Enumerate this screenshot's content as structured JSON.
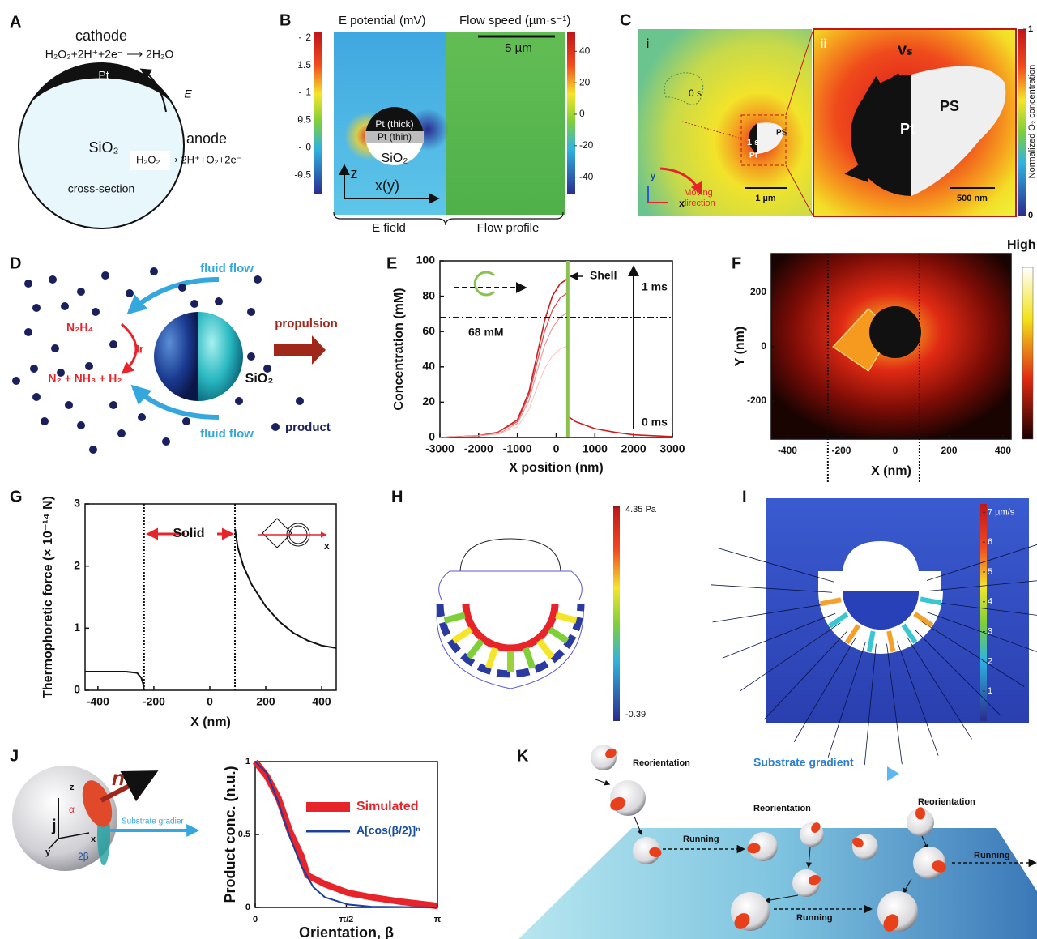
{
  "panels": {
    "A": {
      "label": "A",
      "cathode": "cathode",
      "cathode_reaction": "H₂O₂+2H⁺+2e⁻ ⟶ 2H₂O",
      "pt": "Pt",
      "field": "E",
      "anode": "anode",
      "sio2": "SiO₂",
      "anode_reaction": "H₂O₂ ⟶ 2H⁺+O₂+2e⁻",
      "section": "cross-section"
    },
    "B": {
      "label": "B",
      "left_title": "E potential (mV)",
      "right_title": "Flow speed  (µm·s⁻¹)",
      "scale": "5 µm",
      "pt_thick": "Pt (thick)",
      "pt_thin": "Pt (thin)",
      "sio2": "SiO₂",
      "z_axis": "z",
      "x_axis": "x(y)",
      "left_caption": "E field",
      "right_caption": "Flow profile",
      "left_colorbar": {
        "lim": [
          -0.85,
          2.1
        ],
        "ticks": [
          2,
          1.5,
          1,
          0.5,
          0,
          -0.5
        ]
      },
      "right_colorbar": {
        "lim": [
          -51,
          52
        ],
        "ticks": [
          40,
          20,
          0,
          -20,
          -40
        ]
      }
    },
    "C": {
      "label": "C",
      "inset_i": "i",
      "inset_ii": "ii",
      "start": "0 s",
      "end": "1 s",
      "ps_small": "PS",
      "pt_small": "Pt",
      "moving_1": "Moving",
      "moving_2": "direction",
      "y_axis": "y",
      "x_axis": "x",
      "scale_small": "1 µm",
      "vs": "vₛ",
      "ps": "PS",
      "pt": "Pt",
      "scale_large": "500 nm",
      "colorbar_label": "Normalized O₂ concentration",
      "colorbar": {
        "lim": [
          0,
          1
        ],
        "ticks": [
          1,
          0
        ]
      }
    },
    "D": {
      "label": "D",
      "flow_top": "fluid flow",
      "reactant": "N₂H₄",
      "catalyst": "Ir",
      "products": "N₂ + NH₃ + H₂",
      "propulsion": "propulsion",
      "sio2": "SiO₂",
      "flow_bottom": "fluid flow",
      "product": "product"
    },
    "E": {
      "label": "E",
      "chart": {
        "type": "line",
        "y_label": "Concentration (mM)",
        "x_label": "X position (nm)",
        "xlim": [
          -3000,
          3000
        ],
        "ylim": [
          0,
          100
        ],
        "xticks": [
          -3000,
          -2000,
          -1000,
          0,
          1000,
          2000,
          3000
        ],
        "yticks": [
          0,
          20,
          40,
          60,
          80,
          100
        ],
        "series": [
          {
            "color": "#d01c1c",
            "x": [
              -3000,
              -2000,
              -1500,
              -1000,
              -700,
              -500,
              -300,
              -100,
              100,
              300
            ],
            "values": [
              0,
              1,
              3,
              10,
              26,
              46,
              66,
              80,
              87,
              90
            ]
          },
          {
            "color": "#e0474a",
            "x": [
              -3000,
              -2000,
              -1500,
              -1000,
              -700,
              -500,
              -300,
              -100,
              100,
              300
            ],
            "values": [
              0,
              1,
              3,
              9,
              24,
              42,
              60,
              72,
              79,
              82
            ]
          },
          {
            "color": "#ec8a8a",
            "x": [
              -3000,
              -2000,
              -1500,
              -1000,
              -700,
              -500,
              -300,
              -100,
              100,
              300
            ],
            "values": [
              0,
              1,
              2,
              8,
              21,
              37,
              52,
              62,
              68,
              71
            ]
          },
          {
            "color": "#f4b5b5",
            "x": [
              -3000,
              -2000,
              -1500,
              -1000,
              -700,
              -500,
              -300,
              -100,
              100,
              300
            ],
            "values": [
              0,
              1,
              2,
              6,
              16,
              28,
              39,
              46,
              50,
              52
            ]
          },
          {
            "color": "#d01c1c",
            "x": [
              300,
              500,
              1000,
              1500,
              2000,
              3000
            ],
            "values": [
              12,
              9,
              5,
              3,
              1.5,
              0.5
            ]
          }
        ],
        "shell": {
          "value": 300,
          "label": "Shell"
        },
        "threshold": {
          "value": 68,
          "label": "68 mM"
        },
        "time_end": "1 ms",
        "time_start": "0 ms"
      }
    },
    "F": {
      "label": "F",
      "chart": {
        "type": "heatmap",
        "y_label": "Y (nm)",
        "x_label": "X (nm)",
        "xlim": [
          -460,
          430
        ],
        "ylim": [
          -340,
          343
        ],
        "xticks": [
          -400,
          -200,
          0,
          200,
          400
        ],
        "yticks": [
          200,
          0,
          -200
        ],
        "walls": [
          -250,
          90
        ],
        "colorbar_label": "High"
      }
    },
    "G": {
      "label": "G",
      "chart": {
        "type": "line",
        "y_label": "Thermophoretic force (× 10⁻¹⁴ N)",
        "x_label": "X (nm)",
        "xlim": [
          -446,
          452
        ],
        "ylim": [
          0,
          3
        ],
        "xticks": [
          -400,
          -200,
          0,
          200,
          400
        ],
        "yticks": [
          0,
          1,
          2,
          3
        ],
        "walls": [
          -235,
          90
        ],
        "solid": "Solid",
        "axis": "x",
        "series": [
          {
            "color": "#111111",
            "x": [
              -446,
              -300,
              -260,
              -245,
              -238,
              -235
            ],
            "values": [
              0.3,
              0.3,
              0.28,
              0.2,
              0.1,
              0
            ]
          },
          {
            "color": "#111111",
            "x": [
              90,
              100,
              120,
              150,
              200,
              250,
              300,
              350,
              400,
              452
            ],
            "values": [
              2.6,
              2.3,
              2.0,
              1.7,
              1.35,
              1.1,
              0.92,
              0.8,
              0.72,
              0.68
            ]
          }
        ]
      }
    },
    "H": {
      "label": "H",
      "colorbar": {
        "max": {
          "value": 4.35,
          "label": "4.35 Pa"
        },
        "min": -0.39
      }
    },
    "I": {
      "label": "I",
      "colorbar": {
        "lim": [
          0,
          7.2
        ],
        "ticks": [
          1,
          2,
          3,
          4,
          5,
          6,
          {
            "value": 7,
            "label": "7 µm/s"
          }
        ]
      }
    },
    "J": {
      "label": "J",
      "n": "n",
      "z": "z",
      "alpha": "α",
      "j": "j",
      "y": "y",
      "x": "x",
      "beta": "2β",
      "gradient": "Substrate gradier",
      "chart": {
        "type": "line",
        "y_label": "Product conc. (n.u.)",
        "x_label": "Orientation, β",
        "xlim": [
          0,
          3.1416
        ],
        "ylim": [
          0,
          1
        ],
        "xticks": [
          0,
          {
            "value": 1.5708,
            "label": "π/2"
          },
          {
            "value": 3.1416,
            "label": "π"
          }
        ],
        "yticks": [
          0,
          0.5,
          1
        ],
        "series": [
          {
            "name": "Simulated",
            "color": "#e8242b",
            "x": [
              0,
              0.2,
              0.4,
              0.6,
              0.8,
              0.9,
              1.2,
              1.6,
              2.0,
              2.5,
              3.1416
            ],
            "values": [
              1,
              0.9,
              0.75,
              0.52,
              0.35,
              0.22,
              0.16,
              0.1,
              0.07,
              0.04,
              0.01
            ]
          },
          {
            "name": "A[cos(β/2)]ⁿ",
            "color": "#1a3fa0",
            "x": [
              0,
              0.2,
              0.4,
              0.6,
              0.8,
              1.0,
              1.2,
              1.6,
              2.0,
              3.1416
            ],
            "values": [
              1,
              0.92,
              0.72,
              0.48,
              0.28,
              0.14,
              0.07,
              0.02,
              0.005,
              0
            ]
          }
        ]
      }
    },
    "K": {
      "label": "K",
      "reorient_1": "Reorientation",
      "gradient": "Substrate gradient",
      "reorient_2": "Reorientation",
      "reorient_3": "Reorientation",
      "run_1": "Running",
      "run_2": "Running",
      "run_3": "Running"
    }
  }
}
